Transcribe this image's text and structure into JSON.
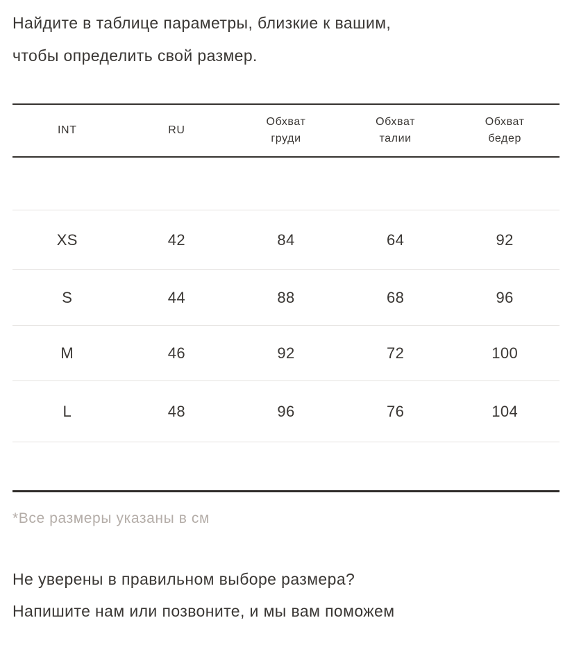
{
  "intro": {
    "line1": "Найдите в таблице параметры, близкие к вашим,",
    "line2": "чтобы определить свой размер."
  },
  "table": {
    "headers": [
      {
        "line1": "INT",
        "line2": ""
      },
      {
        "line1": "RU",
        "line2": ""
      },
      {
        "line1": "Обхват",
        "line2": "груди"
      },
      {
        "line1": "Обхват",
        "line2": "талии"
      },
      {
        "line1": "Обхват",
        "line2": "бедер"
      }
    ],
    "rows": [
      [
        "XS",
        "42",
        "84",
        "64",
        "92"
      ],
      [
        "S",
        "44",
        "88",
        "68",
        "96"
      ],
      [
        "M",
        "46",
        "92",
        "72",
        "100"
      ],
      [
        "L",
        "48",
        "96",
        "76",
        "104"
      ]
    ],
    "footnote": "*Все размеры указаны в см"
  },
  "outro": {
    "line1": "Не уверены в правильном выборе размера?",
    "line2": "Напишите нам или позвоните, и мы вам поможем"
  }
}
